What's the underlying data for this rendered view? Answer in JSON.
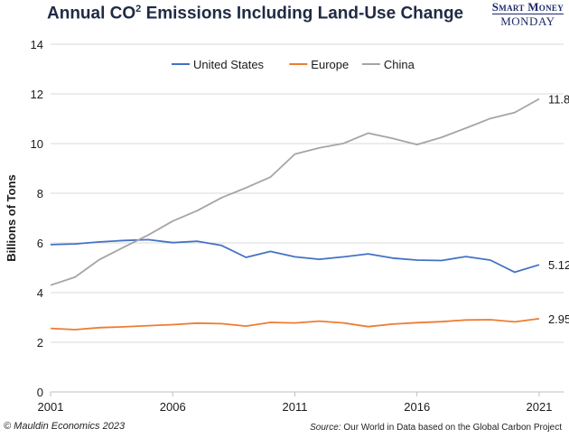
{
  "header": {
    "title_main": "Annual CO",
    "title_sup": "2",
    "title_rest": " Emissions Including Land-Use Change",
    "brand_top": "Smart Money",
    "brand_bottom": "MONDAY"
  },
  "footer": {
    "copyright": "© Mauldin Economics 2023",
    "source_label": "Source:",
    "source_text": " Our World in Data based on the Global Carbon Project"
  },
  "chart_data": {
    "type": "line",
    "ylabel": "Billions of Tons",
    "xlim": [
      2001,
      2022
    ],
    "ylim": [
      0,
      14
    ],
    "yticks": [
      0,
      2,
      4,
      6,
      8,
      10,
      12,
      14
    ],
    "xticks": [
      2001,
      2006,
      2011,
      2016,
      2021
    ],
    "grid": true,
    "legend": "top-center",
    "x": [
      2001,
      2002,
      2003,
      2004,
      2005,
      2006,
      2007,
      2008,
      2009,
      2010,
      2011,
      2012,
      2013,
      2014,
      2015,
      2016,
      2017,
      2018,
      2019,
      2020,
      2021
    ],
    "series": [
      {
        "name": "United States",
        "color": "#4472c4",
        "values": [
          5.93,
          5.96,
          6.04,
          6.1,
          6.13,
          6.01,
          6.07,
          5.9,
          5.42,
          5.66,
          5.44,
          5.34,
          5.44,
          5.56,
          5.39,
          5.31,
          5.29,
          5.45,
          5.31,
          4.82,
          5.12
        ],
        "end_label": "5.12"
      },
      {
        "name": "Europe",
        "color": "#ed7d31",
        "values": [
          2.56,
          2.51,
          2.59,
          2.62,
          2.67,
          2.71,
          2.77,
          2.75,
          2.65,
          2.8,
          2.78,
          2.85,
          2.78,
          2.63,
          2.73,
          2.79,
          2.83,
          2.9,
          2.91,
          2.82,
          2.95
        ],
        "end_label": "2.95"
      },
      {
        "name": "China",
        "color": "#a5a5a5",
        "values": [
          4.3,
          4.62,
          5.33,
          5.83,
          6.32,
          6.88,
          7.3,
          7.82,
          8.22,
          8.65,
          9.58,
          9.83,
          10.01,
          10.42,
          10.21,
          9.96,
          10.25,
          10.62,
          11.01,
          11.25,
          11.8
        ],
        "end_label": "11.8"
      }
    ]
  }
}
